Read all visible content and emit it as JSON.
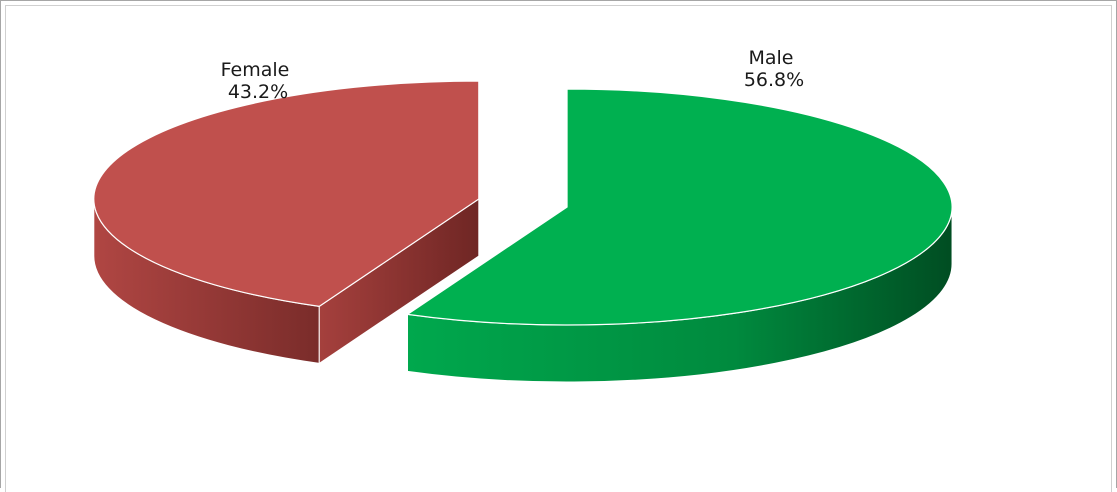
{
  "chart_data": {
    "type": "pie",
    "style": "3d-exploded",
    "slices": [
      {
        "label": "Male",
        "value": 56.8,
        "value_label": "56.8%",
        "color": "#00b050",
        "side_color": "#006b2f"
      },
      {
        "label": "Female",
        "value": 43.2,
        "value_label": "43.2%",
        "color": "#c0504d",
        "side_color": "#8a3431"
      }
    ],
    "legend": "none"
  }
}
